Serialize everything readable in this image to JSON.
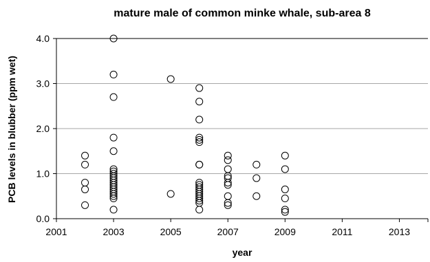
{
  "chart_data": {
    "type": "scatter",
    "title": "mature male of common minke whale, sub-area 8",
    "xlabel": "year",
    "ylabel": "PCB levels in blubber (ppm wet)",
    "xlim": [
      2001,
      2014
    ],
    "ylim": [
      0.0,
      4.0
    ],
    "x_ticks": [
      2001,
      2003,
      2005,
      2007,
      2009,
      2011,
      2013
    ],
    "y_ticks": [
      0.0,
      1.0,
      2.0,
      3.0,
      4.0
    ],
    "x_tick_labels": [
      "2001",
      "2003",
      "2005",
      "2007",
      "2009",
      "2011",
      "2013"
    ],
    "y_tick_labels": [
      "0.0",
      "1.0",
      "2.0",
      "3.0",
      "4.0"
    ],
    "grid": "horizontal",
    "legend": "none",
    "marker": "open-circle",
    "points": [
      {
        "x": 2002,
        "y": 1.4
      },
      {
        "x": 2002,
        "y": 1.2
      },
      {
        "x": 2002,
        "y": 0.8
      },
      {
        "x": 2002,
        "y": 0.65
      },
      {
        "x": 2002,
        "y": 0.3
      },
      {
        "x": 2003,
        "y": 4.0
      },
      {
        "x": 2003,
        "y": 3.2
      },
      {
        "x": 2003,
        "y": 2.7
      },
      {
        "x": 2003,
        "y": 1.8
      },
      {
        "x": 2003,
        "y": 1.5
      },
      {
        "x": 2003,
        "y": 1.1
      },
      {
        "x": 2003,
        "y": 1.05
      },
      {
        "x": 2003,
        "y": 1.0
      },
      {
        "x": 2003,
        "y": 0.95
      },
      {
        "x": 2003,
        "y": 0.9
      },
      {
        "x": 2003,
        "y": 0.85
      },
      {
        "x": 2003,
        "y": 0.8
      },
      {
        "x": 2003,
        "y": 0.75
      },
      {
        "x": 2003,
        "y": 0.7
      },
      {
        "x": 2003,
        "y": 0.65
      },
      {
        "x": 2003,
        "y": 0.6
      },
      {
        "x": 2003,
        "y": 0.55
      },
      {
        "x": 2003,
        "y": 0.5
      },
      {
        "x": 2003,
        "y": 0.45
      },
      {
        "x": 2003,
        "y": 0.2
      },
      {
        "x": 2005,
        "y": 3.1
      },
      {
        "x": 2005,
        "y": 0.55
      },
      {
        "x": 2006,
        "y": 2.9
      },
      {
        "x": 2006,
        "y": 2.6
      },
      {
        "x": 2006,
        "y": 2.2
      },
      {
        "x": 2006,
        "y": 1.8
      },
      {
        "x": 2006,
        "y": 1.75
      },
      {
        "x": 2006,
        "y": 1.7
      },
      {
        "x": 2006,
        "y": 1.2
      },
      {
        "x": 2006,
        "y": 1.2
      },
      {
        "x": 2006,
        "y": 0.8
      },
      {
        "x": 2006,
        "y": 0.75
      },
      {
        "x": 2006,
        "y": 0.7
      },
      {
        "x": 2006,
        "y": 0.65
      },
      {
        "x": 2006,
        "y": 0.6
      },
      {
        "x": 2006,
        "y": 0.55
      },
      {
        "x": 2006,
        "y": 0.5
      },
      {
        "x": 2006,
        "y": 0.45
      },
      {
        "x": 2006,
        "y": 0.4
      },
      {
        "x": 2006,
        "y": 0.35
      },
      {
        "x": 2006,
        "y": 0.2
      },
      {
        "x": 2007,
        "y": 1.4
      },
      {
        "x": 2007,
        "y": 1.3
      },
      {
        "x": 2007,
        "y": 1.1
      },
      {
        "x": 2007,
        "y": 0.95
      },
      {
        "x": 2007,
        "y": 0.9
      },
      {
        "x": 2007,
        "y": 0.8
      },
      {
        "x": 2007,
        "y": 0.75
      },
      {
        "x": 2007,
        "y": 0.5
      },
      {
        "x": 2007,
        "y": 0.35
      },
      {
        "x": 2007,
        "y": 0.3
      },
      {
        "x": 2008,
        "y": 1.2
      },
      {
        "x": 2008,
        "y": 0.9
      },
      {
        "x": 2008,
        "y": 0.5
      },
      {
        "x": 2009,
        "y": 1.4
      },
      {
        "x": 2009,
        "y": 1.1
      },
      {
        "x": 2009,
        "y": 0.65
      },
      {
        "x": 2009,
        "y": 0.45
      },
      {
        "x": 2009,
        "y": 0.2
      },
      {
        "x": 2009,
        "y": 0.15
      }
    ]
  }
}
